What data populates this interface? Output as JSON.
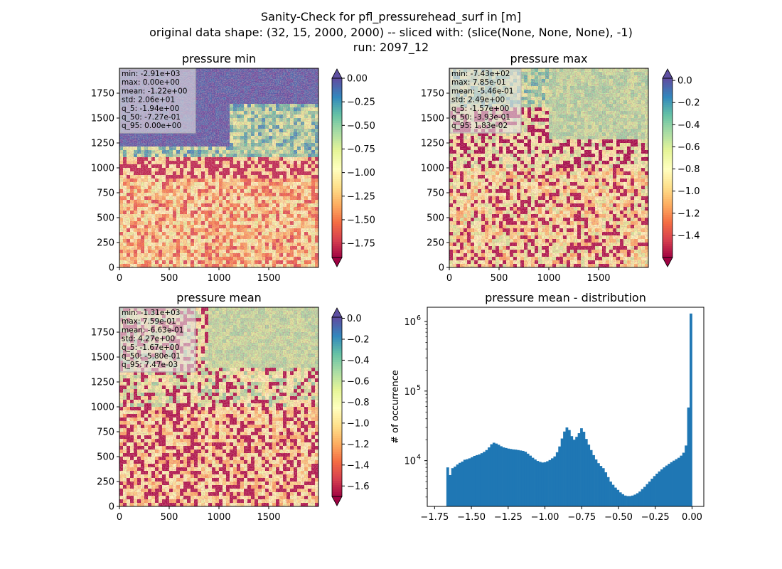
{
  "figure": {
    "suptitle": [
      "Sanity-Check for pfl_pressurehead_surf in [m]",
      "original data shape: (32, 15, 2000, 2000) -- sliced with: (slice(None, None, None), -1)",
      "run: 2097_12"
    ]
  },
  "colors": {
    "histogram_bar": "#1f77b4",
    "spectral_colormap": [
      "#9e0142",
      "#d53e4f",
      "#f46d43",
      "#fdae61",
      "#fee08b",
      "#ffffbf",
      "#e6f598",
      "#abdda4",
      "#66c2a5",
      "#3288bd",
      "#5e4fa2"
    ]
  },
  "chart_data": [
    {
      "type": "heatmap",
      "title": "pressure min",
      "colormap": "Spectral",
      "x_ticks": [
        "0",
        "500",
        "1000",
        "1500"
      ],
      "y_ticks": [
        "0",
        "250",
        "500",
        "750",
        "1000",
        "1250",
        "1500",
        "1750"
      ],
      "xlim": [
        0,
        2000
      ],
      "ylim": [
        0,
        2000
      ],
      "colorbar": {
        "range": [
          -1.9,
          0.0
        ],
        "extend": "both",
        "ticks": [
          "0.00",
          "−0.25",
          "−0.50",
          "−0.75",
          "−1.00",
          "−1.25",
          "−1.50",
          "−1.75"
        ],
        "tick_values": [
          0.0,
          -0.25,
          -0.5,
          -0.75,
          -1.0,
          -1.25,
          -1.5,
          -1.75
        ]
      },
      "stats": [
        "min: -2.91e+03",
        "max: 0.00e+00",
        "mean: -1.22e+00",
        "std: 2.06e+01",
        "q_5: -1.94e+00",
        "q_50: -7.27e-01",
        "q_95: 0.00e+00"
      ]
    },
    {
      "type": "heatmap",
      "title": "pressure max",
      "colormap": "Spectral",
      "x_ticks": [
        "0",
        "500",
        "1000",
        "1500"
      ],
      "y_ticks": [
        "0",
        "250",
        "500",
        "750",
        "1000",
        "1250",
        "1500",
        "1750"
      ],
      "xlim": [
        0,
        2000
      ],
      "ylim": [
        0,
        2000
      ],
      "colorbar": {
        "range": [
          -1.6,
          0.02
        ],
        "extend": "both",
        "ticks": [
          "0.0",
          "−0.2",
          "−0.4",
          "−0.6",
          "−0.8",
          "−1.0",
          "−1.2",
          "−1.4"
        ],
        "tick_values": [
          0.0,
          -0.2,
          -0.4,
          -0.6,
          -0.8,
          -1.0,
          -1.2,
          -1.4
        ]
      },
      "stats": [
        "min: -7.43e+02",
        "max: 7.85e-01",
        "mean: -5.46e-01",
        "std: 2.49e+00",
        "q_5: -1.57e+00",
        "q_50: -3.93e-01",
        "q_95: 1.83e-02"
      ]
    },
    {
      "type": "heatmap",
      "title": "pressure mean",
      "colormap": "Spectral",
      "x_ticks": [
        "0",
        "500",
        "1000",
        "1500"
      ],
      "y_ticks": [
        "0",
        "250",
        "500",
        "750",
        "1000",
        "1250",
        "1500",
        "1750"
      ],
      "xlim": [
        0,
        2000
      ],
      "ylim": [
        0,
        2000
      ],
      "colorbar": {
        "range": [
          -1.7,
          0.01
        ],
        "extend": "both",
        "ticks": [
          "0.0",
          "−0.2",
          "−0.4",
          "−0.6",
          "−0.8",
          "−1.0",
          "−1.2",
          "−1.4",
          "−1.6"
        ],
        "tick_values": [
          0.0,
          -0.2,
          -0.4,
          -0.6,
          -0.8,
          -1.0,
          -1.2,
          -1.4,
          -1.6
        ]
      },
      "stats": [
        "min: -1.31e+03",
        "max: 7.59e-01",
        "mean: -6.63e-01",
        "std: 4.27e+00",
        "q_5: -1.67e+00",
        "q_50: -5.80e-01",
        "q_95: 7.47e-03"
      ]
    },
    {
      "type": "bar",
      "title": "pressure mean - distribution",
      "ylabel": "# of occurrence",
      "xlabel": "",
      "yscale": "log",
      "xlim": [
        -1.8,
        0.08
      ],
      "ylim": [
        2200,
        1600000
      ],
      "x_ticks": [
        "−1.75",
        "−1.50",
        "−1.25",
        "−1.00",
        "−0.75",
        "−0.50",
        "−0.25",
        "0.00"
      ],
      "x_tick_values": [
        -1.75,
        -1.5,
        -1.25,
        -1.0,
        -0.75,
        -0.5,
        -0.25,
        0.0
      ],
      "y_ticks": [
        "10",
        "10",
        "10"
      ],
      "y_tick_exponents": [
        "4",
        "5",
        "6"
      ],
      "y_tick_values": [
        10000,
        100000,
        1000000
      ],
      "bin_range": [
        -1.67,
        0.0
      ],
      "series": [
        {
          "values": [
            8000,
            6200,
            7800,
            8200,
            8800,
            9300,
            9700,
            10300,
            10500,
            10800,
            11200,
            11700,
            12000,
            12300,
            12800,
            13400,
            14200,
            15500,
            17200,
            18100,
            17600,
            16900,
            16100,
            15500,
            15200,
            14900,
            14700,
            14500,
            14400,
            14200,
            14000,
            13800,
            13400,
            12600,
            11800,
            11000,
            10400,
            9900,
            9600,
            9400,
            9500,
            9800,
            10200,
            10800,
            11500,
            13200,
            16000,
            20800,
            26200,
            30000,
            27500,
            22500,
            20000,
            22000,
            24800,
            29200,
            26000,
            20500,
            17000,
            14200,
            12000,
            10400,
            9200,
            8400,
            7800,
            6800,
            5800,
            5000,
            4500,
            4100,
            3800,
            3500,
            3300,
            3150,
            3100,
            3100,
            3150,
            3250,
            3400,
            3600,
            3900,
            4200,
            4600,
            5000,
            5500,
            6000,
            6500,
            7000,
            7500,
            8000,
            8500,
            9000,
            9500,
            10000,
            10500,
            11000,
            11800,
            13000,
            16500,
            58000,
            1300000
          ]
        }
      ]
    }
  ]
}
